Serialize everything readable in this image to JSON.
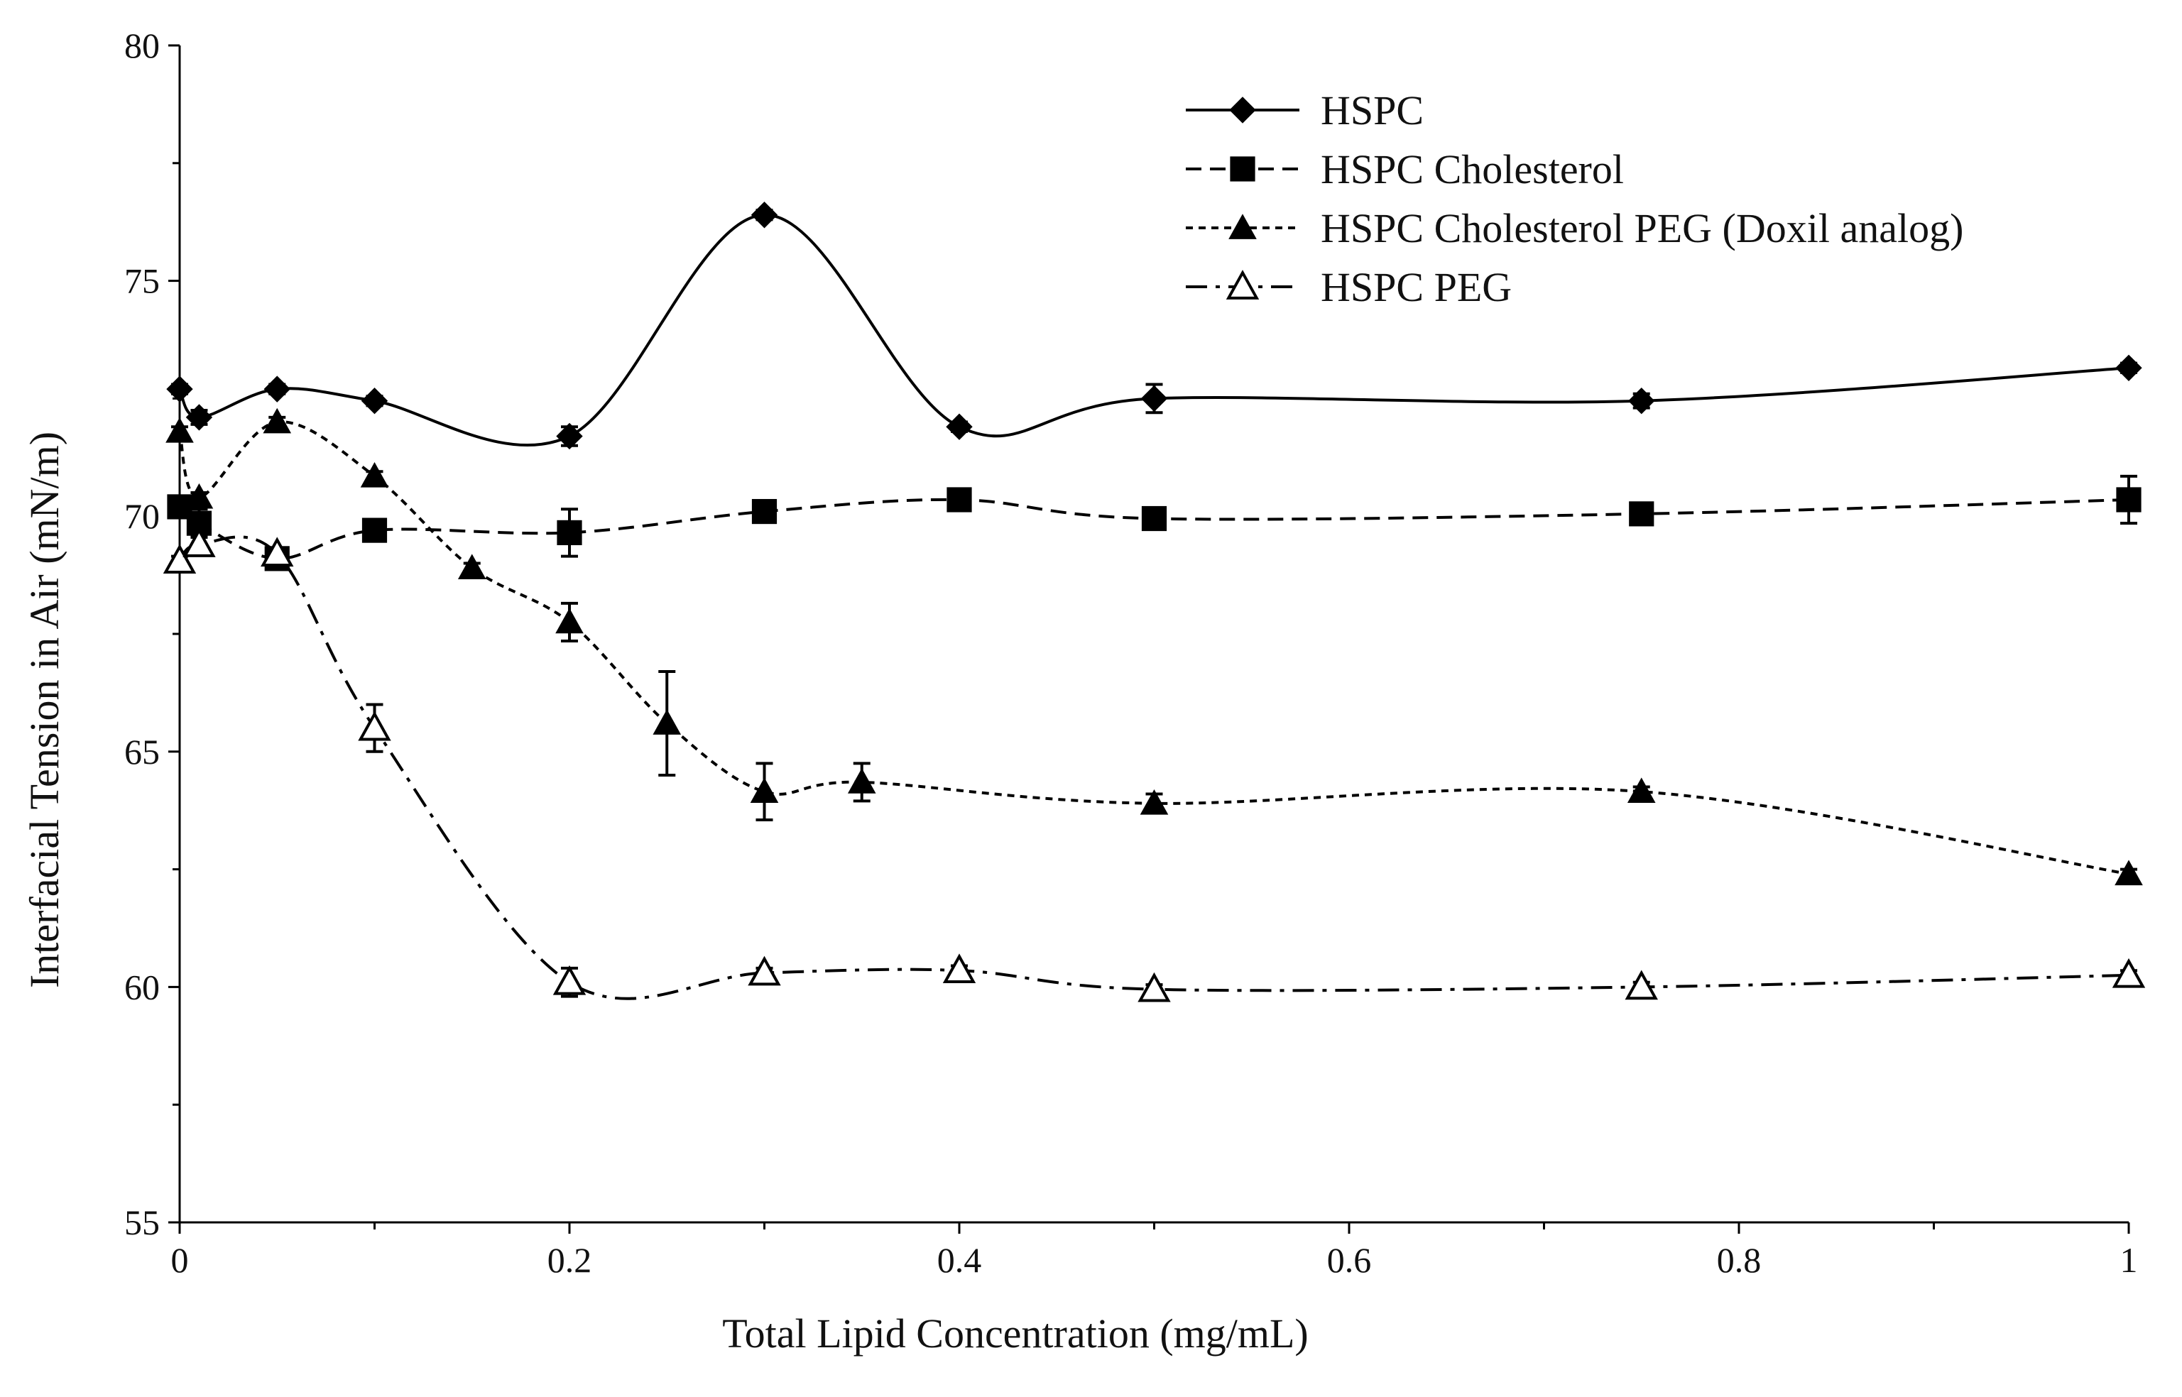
{
  "chart_data": {
    "type": "line",
    "xlabel": "Total Lipid Concentration (mg/mL)",
    "ylabel": "Interfacial Tension in Air (mN/m)",
    "xlim": [
      0,
      1
    ],
    "ylim": [
      55,
      80
    ],
    "xticks": [
      0,
      0.2,
      0.4,
      0.6,
      0.8,
      1
    ],
    "xtick_labels": [
      "0",
      "0.2",
      "0.4",
      "0.6",
      "0.8",
      "1"
    ],
    "yticks": [
      55,
      60,
      65,
      70,
      75,
      80
    ],
    "ytick_labels": [
      "55",
      "60",
      "65",
      "70",
      "75",
      "80"
    ],
    "grid": false,
    "legend_position": "top-right",
    "series": [
      {
        "name": "HSPC",
        "marker": "diamond",
        "dash": "solid",
        "color": "#000000",
        "points": [
          {
            "x": 0,
            "y": 72.7,
            "err": 0.1
          },
          {
            "x": 0.01,
            "y": 72.1,
            "err": 0.15
          },
          {
            "x": 0.05,
            "y": 72.7,
            "err": 0.1
          },
          {
            "x": 0.1,
            "y": 72.45,
            "err": 0.1
          },
          {
            "x": 0.2,
            "y": 71.7,
            "err": 0.2
          },
          {
            "x": 0.3,
            "y": 76.4,
            "err": 0.1
          },
          {
            "x": 0.4,
            "y": 71.9,
            "err": 0.1
          },
          {
            "x": 0.5,
            "y": 72.5,
            "err": 0.3
          },
          {
            "x": 0.75,
            "y": 72.45,
            "err": 0.15
          },
          {
            "x": 1.0,
            "y": 73.15,
            "err": 0.1
          }
        ]
      },
      {
        "name": "HSPC Cholesterol",
        "marker": "square",
        "dash": "dashed",
        "color": "#000000",
        "points": [
          {
            "x": 0,
            "y": 70.2,
            "err": 0.1
          },
          {
            "x": 0.01,
            "y": 69.85,
            "err": 0.3
          },
          {
            "x": 0.05,
            "y": 69.1,
            "err": 0.1
          },
          {
            "x": 0.1,
            "y": 69.7,
            "err": 0.1
          },
          {
            "x": 0.2,
            "y": 69.65,
            "err": 0.5
          },
          {
            "x": 0.3,
            "y": 70.1,
            "err": 0.1
          },
          {
            "x": 0.4,
            "y": 70.35,
            "err": 0.1
          },
          {
            "x": 0.5,
            "y": 69.95,
            "err": 0.1
          },
          {
            "x": 0.75,
            "y": 70.05,
            "err": 0.1
          },
          {
            "x": 1.0,
            "y": 70.35,
            "err": 0.5
          }
        ]
      },
      {
        "name": "HSPC Cholesterol PEG (Doxil analog)",
        "marker": "triangle-filled",
        "dash": "short-dashed",
        "color": "#000000",
        "points": [
          {
            "x": 0,
            "y": 71.8,
            "err": 0.1
          },
          {
            "x": 0.01,
            "y": 70.4,
            "err": 0.1
          },
          {
            "x": 0.05,
            "y": 72.0,
            "err": 0.1
          },
          {
            "x": 0.1,
            "y": 70.85,
            "err": 0.1
          },
          {
            "x": 0.15,
            "y": 68.9,
            "err": 0.1
          },
          {
            "x": 0.2,
            "y": 67.75,
            "err": 0.4
          },
          {
            "x": 0.25,
            "y": 65.6,
            "err": 1.1
          },
          {
            "x": 0.3,
            "y": 64.15,
            "err": 0.6
          },
          {
            "x": 0.35,
            "y": 64.35,
            "err": 0.4
          },
          {
            "x": 0.5,
            "y": 63.9,
            "err": 0.2
          },
          {
            "x": 0.75,
            "y": 64.15,
            "err": 0.1
          },
          {
            "x": 1.0,
            "y": 62.4,
            "err": 0.1
          }
        ]
      },
      {
        "name": "HSPC PEG",
        "marker": "triangle-open",
        "dash": "dash-dot",
        "color": "#000000",
        "points": [
          {
            "x": 0,
            "y": 69.05,
            "err": 0.1
          },
          {
            "x": 0.01,
            "y": 69.4,
            "err": 0.2
          },
          {
            "x": 0.05,
            "y": 69.2,
            "err": 0.1
          },
          {
            "x": 0.1,
            "y": 65.5,
            "err": 0.5
          },
          {
            "x": 0.2,
            "y": 60.1,
            "err": 0.3
          },
          {
            "x": 0.3,
            "y": 60.3,
            "err": 0.1
          },
          {
            "x": 0.4,
            "y": 60.35,
            "err": 0.1
          },
          {
            "x": 0.5,
            "y": 59.95,
            "err": 0.1
          },
          {
            "x": 0.75,
            "y": 60.0,
            "err": 0.1
          },
          {
            "x": 1.0,
            "y": 60.25,
            "err": 0.1
          }
        ]
      }
    ]
  }
}
